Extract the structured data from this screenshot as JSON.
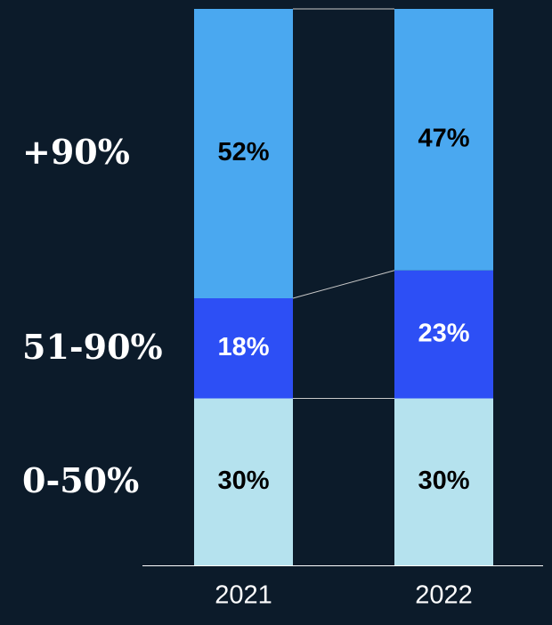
{
  "chart_data": {
    "type": "stacked_bar",
    "categories": [
      "2021",
      "2022"
    ],
    "series": [
      {
        "name": "0-50%",
        "color": "#b5e2ee",
        "values": [
          30,
          30
        ],
        "value_labels": [
          "30%",
          "30%"
        ]
      },
      {
        "name": "51-90%",
        "color": "#2d4ff5",
        "values": [
          18,
          23
        ],
        "value_labels": [
          "18%",
          "23%"
        ]
      },
      {
        "name": "+90%",
        "color": "#4aa8f0",
        "values": [
          52,
          47
        ],
        "value_labels": [
          "52%",
          "47%"
        ]
      }
    ]
  }
}
